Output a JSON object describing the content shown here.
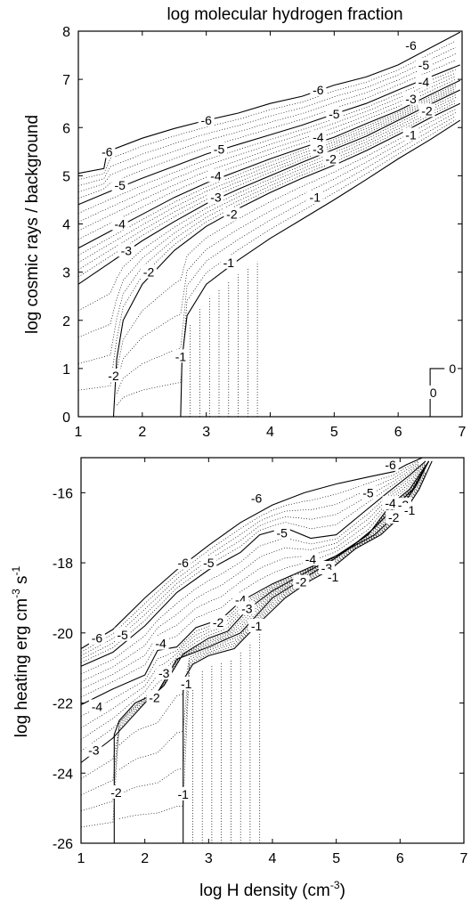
{
  "chart_data": [
    {
      "type": "line",
      "title": "log molecular hydrogen fraction",
      "xlabel": "",
      "ylabel": "log cosmic rays / background",
      "xlim": [
        1,
        7
      ],
      "ylim": [
        0,
        8
      ],
      "xticks": [
        1,
        2,
        3,
        4,
        5,
        6,
        7
      ],
      "yticks": [
        0,
        1,
        2,
        3,
        4,
        5,
        6,
        7,
        8
      ],
      "grid": false,
      "series": [
        {
          "name": "-6",
          "x": [
            1.0,
            1.4,
            1.45,
            2.0,
            2.5,
            3.0,
            3.5,
            4.0,
            4.5,
            5.0,
            5.5,
            6.0,
            6.5,
            6.97
          ],
          "y": [
            5.05,
            5.15,
            5.5,
            5.78,
            5.98,
            6.15,
            6.3,
            6.5,
            6.65,
            6.88,
            7.05,
            7.3,
            7.65,
            7.98
          ]
        },
        {
          "name": "-5",
          "x": [
            1.0,
            1.5,
            2.0,
            2.5,
            3.0,
            3.5,
            4.0,
            4.5,
            5.0,
            5.5,
            6.0,
            6.5,
            6.97
          ],
          "y": [
            4.4,
            4.68,
            4.95,
            5.2,
            5.45,
            5.65,
            5.85,
            6.05,
            6.28,
            6.5,
            6.78,
            7.05,
            7.3
          ]
        },
        {
          "name": "-4",
          "x": [
            1.0,
            1.5,
            2.0,
            2.5,
            3.0,
            3.5,
            4.0,
            4.5,
            5.0,
            5.5,
            6.0,
            6.5,
            6.97
          ],
          "y": [
            3.5,
            3.85,
            4.2,
            4.55,
            4.85,
            5.1,
            5.35,
            5.58,
            5.8,
            6.08,
            6.35,
            6.68,
            6.98
          ]
        },
        {
          "name": "-3",
          "x": [
            1.0,
            1.5,
            2.0,
            2.5,
            3.0,
            3.5,
            4.0,
            4.5,
            5.0,
            5.5,
            6.0,
            6.5,
            6.97
          ],
          "y": [
            2.75,
            3.2,
            3.65,
            4.05,
            4.42,
            4.72,
            5.0,
            5.28,
            5.55,
            5.82,
            6.15,
            6.48,
            6.78
          ]
        },
        {
          "name": "-2",
          "x": [
            1.55,
            1.6,
            1.7,
            2.0,
            2.5,
            3.0,
            3.5,
            4.0,
            4.5,
            5.0,
            5.5,
            6.0,
            6.5,
            6.97
          ],
          "y": [
            0,
            1.2,
            2.0,
            2.75,
            3.45,
            3.95,
            4.32,
            4.65,
            4.95,
            5.22,
            5.52,
            5.85,
            6.2,
            6.5
          ]
        },
        {
          "name": "-1",
          "x": [
            2.6,
            2.62,
            2.7,
            3.0,
            3.5,
            4.0,
            4.5,
            5.0,
            5.5,
            6.0,
            6.5,
            6.97
          ],
          "y": [
            0,
            1.2,
            2.1,
            2.75,
            3.25,
            3.7,
            4.1,
            4.5,
            4.92,
            5.35,
            5.75,
            6.15
          ]
        },
        {
          "name": "0",
          "x": [
            6.5,
            6.5,
            6.6,
            6.97
          ],
          "y": [
            0,
            1.0,
            1.0,
            1.0
          ]
        }
      ],
      "contour_labels": [
        {
          "text": "-6",
          "x": 1.45,
          "y": 5.5
        },
        {
          "text": "-6",
          "x": 3.0,
          "y": 6.15
        },
        {
          "text": "-6",
          "x": 4.75,
          "y": 6.78
        },
        {
          "text": "-6",
          "x": 6.2,
          "y": 7.7
        },
        {
          "text": "-5",
          "x": 1.65,
          "y": 4.8
        },
        {
          "text": "-5",
          "x": 3.2,
          "y": 5.55
        },
        {
          "text": "-5",
          "x": 5.0,
          "y": 6.28
        },
        {
          "text": "-5",
          "x": 6.4,
          "y": 7.3
        },
        {
          "text": "-4",
          "x": 1.65,
          "y": 4.0
        },
        {
          "text": "-4",
          "x": 3.15,
          "y": 5.0
        },
        {
          "text": "-4",
          "x": 4.75,
          "y": 5.8
        },
        {
          "text": "-4",
          "x": 6.4,
          "y": 6.95
        },
        {
          "text": "-3",
          "x": 1.75,
          "y": 3.45
        },
        {
          "text": "-3",
          "x": 3.15,
          "y": 4.55
        },
        {
          "text": "-3",
          "x": 4.75,
          "y": 5.55
        },
        {
          "text": "-3",
          "x": 6.2,
          "y": 6.6
        },
        {
          "text": "-2",
          "x": 1.55,
          "y": 0.85
        },
        {
          "text": "-2",
          "x": 2.1,
          "y": 3.0
        },
        {
          "text": "-2",
          "x": 3.4,
          "y": 4.2
        },
        {
          "text": "-2",
          "x": 4.95,
          "y": 5.35
        },
        {
          "text": "-2",
          "x": 6.45,
          "y": 6.35
        },
        {
          "text": "-1",
          "x": 2.6,
          "y": 1.25
        },
        {
          "text": "-1",
          "x": 3.35,
          "y": 3.2
        },
        {
          "text": "-1",
          "x": 4.7,
          "y": 4.55
        },
        {
          "text": "-1",
          "x": 6.2,
          "y": 5.85
        },
        {
          "text": "0",
          "x": 6.55,
          "y": 0.5
        },
        {
          "text": "0",
          "x": 6.85,
          "y": 1.0
        }
      ]
    },
    {
      "type": "line",
      "title": "",
      "xlabel": "log H density (cm-3)",
      "ylabel": "log heating erg cm-3 s-1",
      "xlim": [
        1,
        7
      ],
      "ylim": [
        -26,
        -15
      ],
      "xticks": [
        1,
        2,
        3,
        4,
        5,
        6,
        7
      ],
      "yticks": [
        -26,
        -24,
        -22,
        -20,
        -18,
        -16
      ],
      "grid": false,
      "series": [
        {
          "name": "-6",
          "x": [
            1.0,
            1.5,
            2.0,
            2.5,
            3.0,
            3.5,
            4.0,
            4.5,
            5.0,
            5.5,
            5.9,
            6.1,
            6.35
          ],
          "y": [
            -20.45,
            -19.9,
            -19.0,
            -18.2,
            -17.5,
            -16.85,
            -16.35,
            -16.0,
            -15.75,
            -15.55,
            -15.4,
            -15.2,
            -15.0
          ]
        },
        {
          "name": "-5",
          "x": [
            1.0,
            1.5,
            2.0,
            2.5,
            3.0,
            3.5,
            3.8,
            4.2,
            4.6,
            5.0,
            5.4,
            5.8,
            6.15,
            6.4
          ],
          "y": [
            -20.95,
            -20.55,
            -19.8,
            -18.85,
            -18.2,
            -17.7,
            -17.2,
            -17.0,
            -17.3,
            -17.2,
            -16.6,
            -16.0,
            -15.5,
            -15.1
          ]
        },
        {
          "name": "-4",
          "x": [
            1.0,
            1.5,
            2.0,
            2.2,
            2.5,
            2.8,
            3.2,
            3.5,
            4.0,
            4.5,
            5.0,
            5.5,
            5.85,
            6.15,
            6.45
          ],
          "y": [
            -22.05,
            -21.6,
            -21.2,
            -20.5,
            -20.4,
            -19.85,
            -19.6,
            -19.1,
            -18.6,
            -18.2,
            -17.8,
            -17.2,
            -16.35,
            -15.9,
            -15.1
          ]
        },
        {
          "name": "-3",
          "x": [
            1.0,
            1.5,
            2.0,
            2.3,
            2.6,
            3.0,
            3.3,
            3.6,
            4.0,
            4.4,
            4.8,
            5.2,
            5.6,
            5.95,
            6.2,
            6.45
          ],
          "y": [
            -23.7,
            -23.0,
            -22.0,
            -21.5,
            -20.6,
            -20.15,
            -19.95,
            -19.35,
            -18.8,
            -18.4,
            -18.0,
            -17.6,
            -17.0,
            -16.35,
            -15.9,
            -15.1
          ]
        },
        {
          "name": "-2",
          "x": [
            1.52,
            1.52,
            1.6,
            1.85,
            2.2,
            2.5,
            3.0,
            3.5,
            4.0,
            4.4,
            4.8,
            5.2,
            5.6,
            5.95,
            6.25,
            6.45
          ],
          "y": [
            -26.0,
            -22.9,
            -22.5,
            -22.0,
            -21.7,
            -20.75,
            -20.4,
            -20.0,
            -19.0,
            -18.55,
            -18.1,
            -17.6,
            -17.2,
            -16.6,
            -15.8,
            -15.1
          ]
        },
        {
          "name": "-1",
          "x": [
            2.6,
            2.6,
            2.75,
            3.0,
            3.4,
            3.8,
            4.2,
            4.6,
            4.9,
            5.3,
            5.7,
            6.05,
            6.3,
            6.5
          ],
          "y": [
            -26.0,
            -21.35,
            -20.9,
            -20.65,
            -20.45,
            -19.7,
            -19.0,
            -18.5,
            -18.2,
            -17.6,
            -17.2,
            -16.6,
            -15.9,
            -15.1
          ]
        }
      ],
      "contour_labels": [
        {
          "text": "-6",
          "x": 1.25,
          "y": -20.15
        },
        {
          "text": "-6",
          "x": 2.6,
          "y": -18.0
        },
        {
          "text": "-6",
          "x": 3.75,
          "y": -16.15
        },
        {
          "text": "-6",
          "x": 5.85,
          "y": -15.2
        },
        {
          "text": "-5",
          "x": 1.65,
          "y": -20.05
        },
        {
          "text": "-5",
          "x": 3.0,
          "y": -18.0
        },
        {
          "text": "-5",
          "x": 4.15,
          "y": -17.15
        },
        {
          "text": "-5",
          "x": 5.5,
          "y": -16.0
        },
        {
          "text": "-4",
          "x": 1.25,
          "y": -22.1
        },
        {
          "text": "-4",
          "x": 2.25,
          "y": -20.3
        },
        {
          "text": "-4",
          "x": 3.5,
          "y": -19.05
        },
        {
          "text": "-4",
          "x": 4.6,
          "y": -17.9
        },
        {
          "text": "-4",
          "x": 5.85,
          "y": -16.3
        },
        {
          "text": "-3",
          "x": 1.2,
          "y": -23.35
        },
        {
          "text": "-3",
          "x": 2.3,
          "y": -21.15
        },
        {
          "text": "-3",
          "x": 3.6,
          "y": -19.3
        },
        {
          "text": "-3",
          "x": 4.85,
          "y": -18.15
        },
        {
          "text": "-3",
          "x": 6.05,
          "y": -16.35
        },
        {
          "text": "-2",
          "x": 1.55,
          "y": -24.55
        },
        {
          "text": "-2",
          "x": 2.15,
          "y": -21.85
        },
        {
          "text": "-2",
          "x": 3.15,
          "y": -19.7
        },
        {
          "text": "-2",
          "x": 4.45,
          "y": -18.55
        },
        {
          "text": "-2",
          "x": 5.9,
          "y": -16.7
        },
        {
          "text": "-1",
          "x": 2.65,
          "y": -21.45
        },
        {
          "text": "-1",
          "x": 2.6,
          "y": -24.6
        },
        {
          "text": "-1",
          "x": 3.75,
          "y": -19.8
        },
        {
          "text": "-1",
          "x": 4.95,
          "y": -18.4
        },
        {
          "text": "-1",
          "x": 6.15,
          "y": -16.5
        }
      ]
    }
  ],
  "axis_labels": {
    "top_ylabel": "log cosmic rays / background",
    "bottom_ylabel_main": "log heating erg cm",
    "bottom_ylabel_sup1": "-3",
    "bottom_ylabel_mid": " s",
    "bottom_ylabel_sup2": "-1",
    "xlabel_main": "log H density (cm",
    "xlabel_sup": "-3",
    "xlabel_end": ")"
  }
}
